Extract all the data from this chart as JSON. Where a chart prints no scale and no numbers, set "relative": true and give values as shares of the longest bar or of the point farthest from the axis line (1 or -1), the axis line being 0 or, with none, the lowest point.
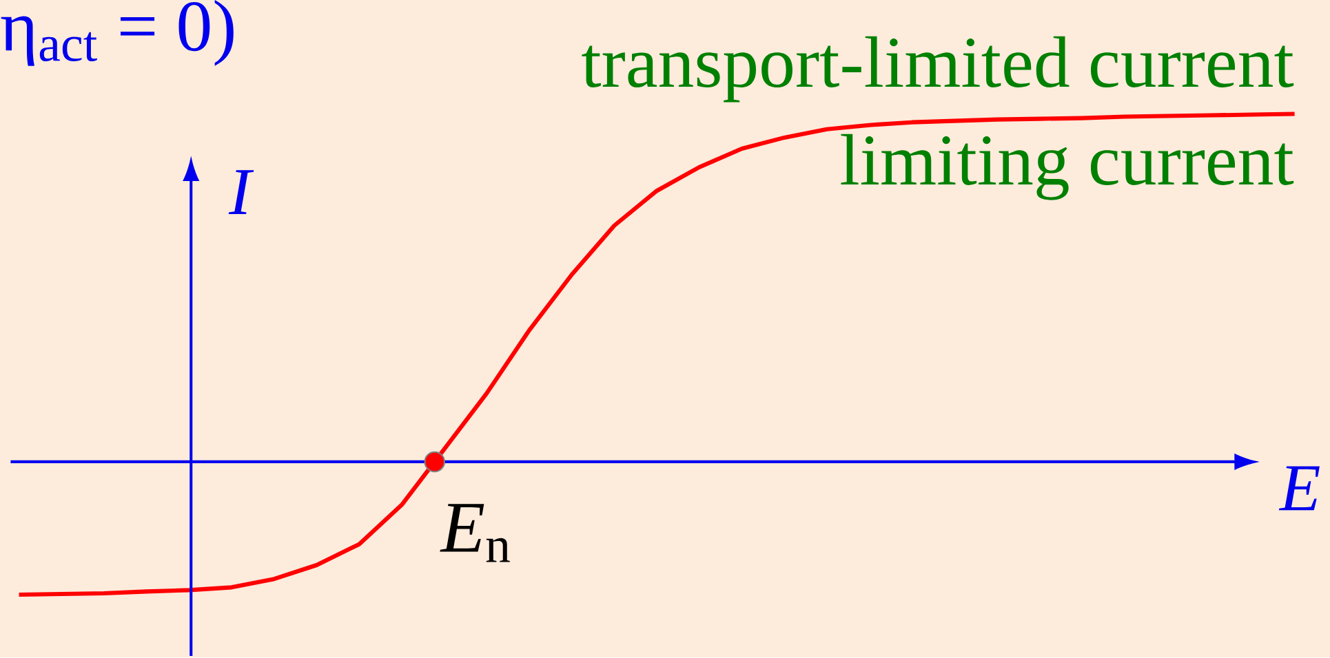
{
  "chart_data": {
    "type": "line",
    "relative": true,
    "xlabel": "E",
    "ylabel": "I",
    "categories": [
      null,
      null,
      null,
      null,
      null,
      null,
      null,
      null,
      null,
      null,
      null,
      null,
      null,
      null,
      null,
      null,
      null,
      null,
      null,
      null,
      null,
      null,
      null,
      null,
      null,
      null,
      null,
      null,
      null,
      null,
      null
    ],
    "series": [
      {
        "color": "#ff0000",
        "values": [
          -0.382,
          -0.38,
          -0.378,
          -0.373,
          -0.369,
          -0.361,
          -0.337,
          -0.297,
          -0.237,
          -0.124,
          0.036,
          0.197,
          0.378,
          0.538,
          0.679,
          0.779,
          0.847,
          0.9,
          0.932,
          0.956,
          0.968,
          0.976,
          0.98,
          0.984,
          0.986,
          0.988,
          0.992,
          0.994,
          0.996,
          0.998,
          1
        ]
      }
    ],
    "ref_lines": [
      {
        "axis": "y",
        "value": 0,
        "color": "#0000ee"
      }
    ],
    "annotations": [
      "*E*$_{n}$",
      "transport-limited current",
      "limiting current",
      "η$_{act}$ = 0)"
    ]
  }
}
